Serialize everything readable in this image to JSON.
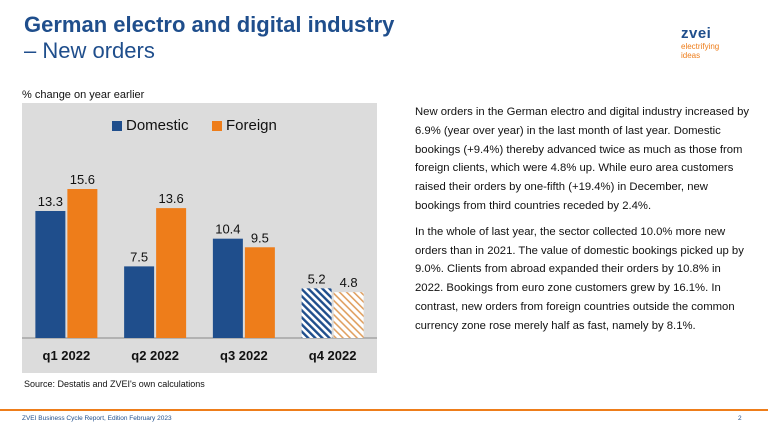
{
  "header": {
    "title_line1": "German electro and digital industry",
    "title_line2": "– New orders"
  },
  "logo": {
    "wordmark": "zvei",
    "tagline_line1": "electrifying",
    "tagline_line2": "ideas"
  },
  "colors": {
    "brand_blue": "#1f4e8c",
    "domestic": "#1f4e8c",
    "foreign": "#ee7d1a",
    "panel_bg": "#dcdcdc",
    "footer_rule": "#ee7d1a"
  },
  "chart_data": {
    "type": "bar",
    "ylabel": "% change on year earlier",
    "categories": [
      "q1 2022",
      "q2 2022",
      "q3 2022",
      "q4 2022"
    ],
    "series": [
      {
        "name": "Domestic",
        "values": [
          13.3,
          7.5,
          10.4,
          5.2
        ],
        "color": "#1f4e8c"
      },
      {
        "name": "Foreign",
        "values": [
          15.6,
          13.6,
          9.5,
          4.8
        ],
        "color": "#ee7d1a"
      }
    ],
    "hatched_category": "q4 2022",
    "ylim": [
      0,
      18
    ],
    "grid": false,
    "legend_position": "top-center"
  },
  "source_note": "Source: Destatis and ZVEI's own calculations",
  "paragraphs": [
    "New orders in the German electro and digital industry increased by 6.9% (year over year) in the last month of last year. Domestic bookings (+9.4%) thereby advanced twice as much as those from foreign clients, which were 4.8% up. While euro area customers raised their orders by one-fifth (+19.4%) in December, new bookings from third countries receded by 2.4%.",
    "In the whole of last year, the sector collected 10.0% more new orders than in 2021. The value of domestic bookings picked up by 9.0%. Clients from abroad expanded their orders by 10.8% in 2022. Bookings from euro zone customers grew by 16.1%. In contrast, new orders from foreign countries outside the common currency zone rose merely half as fast, namely by 8.1%."
  ],
  "footer": {
    "report": "ZVEI Business Cycle Report, Edition February 2023",
    "page": "2"
  }
}
